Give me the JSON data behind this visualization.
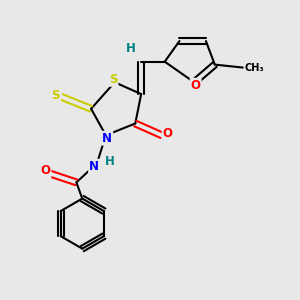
{
  "background_color": "#e8e8e8",
  "bond_color": "#000000",
  "atom_colors": {
    "S": "#cccc00",
    "N": "#0000ff",
    "O": "#ff0000",
    "H": "#008080",
    "C": "#000000"
  },
  "figsize": [
    3.0,
    3.0
  ],
  "dpi": 100
}
